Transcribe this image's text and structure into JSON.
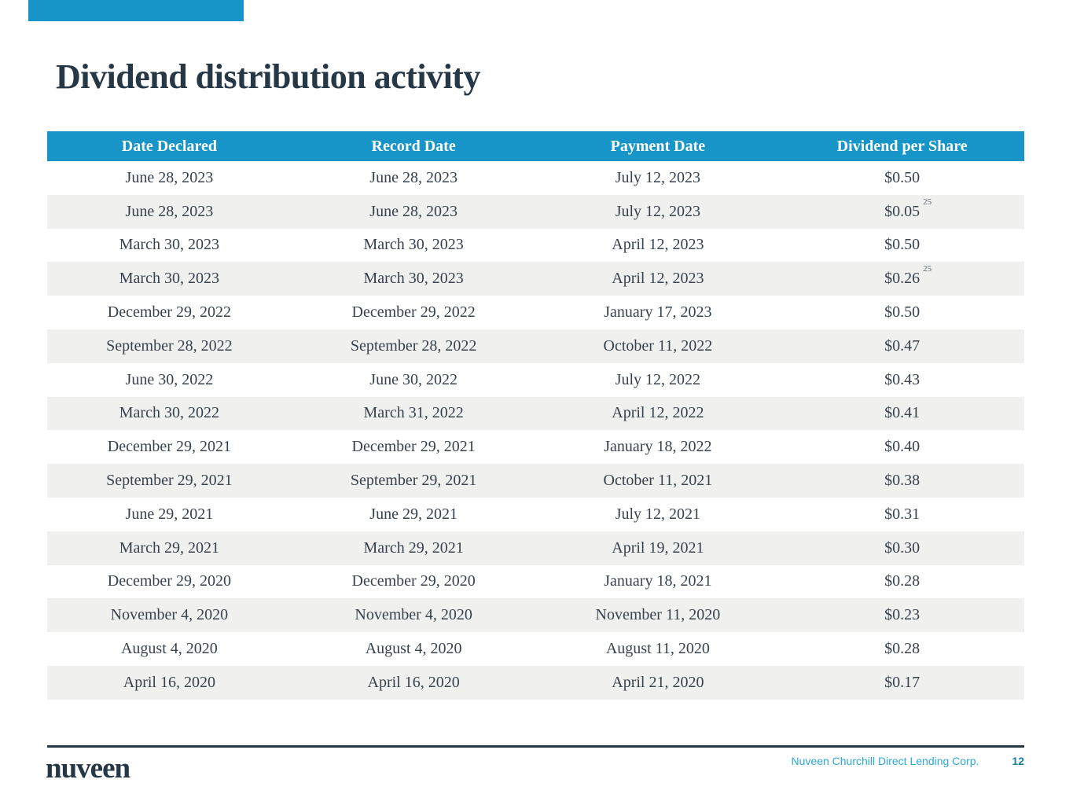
{
  "page": {
    "title": "Dividend distribution activity"
  },
  "table": {
    "columns": [
      "Date Declared",
      "Record Date",
      "Payment Date",
      "Dividend per Share"
    ],
    "rows": [
      {
        "cells": [
          "June 28, 2023",
          "June 28, 2023",
          "July 12, 2023",
          "$0.50"
        ],
        "sup": null
      },
      {
        "cells": [
          "June 28, 2023",
          "June 28, 2023",
          "July 12, 2023",
          "$0.05"
        ],
        "sup": "25"
      },
      {
        "cells": [
          "March 30, 2023",
          "March 30, 2023",
          "April 12, 2023",
          "$0.50"
        ],
        "sup": null
      },
      {
        "cells": [
          "March 30, 2023",
          "March 30, 2023",
          "April 12, 2023",
          "$0.26"
        ],
        "sup": "25"
      },
      {
        "cells": [
          "December 29, 2022",
          "December 29, 2022",
          "January 17, 2023",
          "$0.50"
        ],
        "sup": null
      },
      {
        "cells": [
          "September 28, 2022",
          "September 28, 2022",
          "October 11, 2022",
          "$0.47"
        ],
        "sup": null
      },
      {
        "cells": [
          "June 30, 2022",
          "June 30, 2022",
          "July 12, 2022",
          "$0.43"
        ],
        "sup": null
      },
      {
        "cells": [
          "March 30, 2022",
          "March 31, 2022",
          "April 12, 2022",
          "$0.41"
        ],
        "sup": null
      },
      {
        "cells": [
          "December 29, 2021",
          "December 29, 2021",
          "January 18, 2022",
          "$0.40"
        ],
        "sup": null
      },
      {
        "cells": [
          "September 29, 2021",
          "September 29, 2021",
          "October 11, 2021",
          "$0.38"
        ],
        "sup": null
      },
      {
        "cells": [
          "June 29, 2021",
          "June 29, 2021",
          "July 12, 2021",
          "$0.31"
        ],
        "sup": null
      },
      {
        "cells": [
          "March 29, 2021",
          "March 29, 2021",
          "April 19, 2021",
          "$0.30"
        ],
        "sup": null
      },
      {
        "cells": [
          "December 29, 2020",
          "December 29, 2020",
          "January 18, 2021",
          "$0.28"
        ],
        "sup": null
      },
      {
        "cells": [
          "November 4, 2020",
          "November 4, 2020",
          "November 11, 2020",
          "$0.23"
        ],
        "sup": null
      },
      {
        "cells": [
          "August 4, 2020",
          "August 4, 2020",
          "August 11, 2020",
          "$0.28"
        ],
        "sup": null
      },
      {
        "cells": [
          "April 16, 2020",
          "April 16, 2020",
          "April 21, 2020",
          "$0.17"
        ],
        "sup": null
      }
    ]
  },
  "footer": {
    "logo": "nuveen",
    "company": "Nuveen Churchill Direct Lending Corp.",
    "page_number": "12"
  },
  "colors": {
    "teal_header": "#1795c8",
    "navy_text": "#263746",
    "body_text": "#37424e",
    "alt_row": "#f0f0ee",
    "footer_company_blue": "#2ea7da",
    "footer_page_blue": "#1b7ba5"
  }
}
